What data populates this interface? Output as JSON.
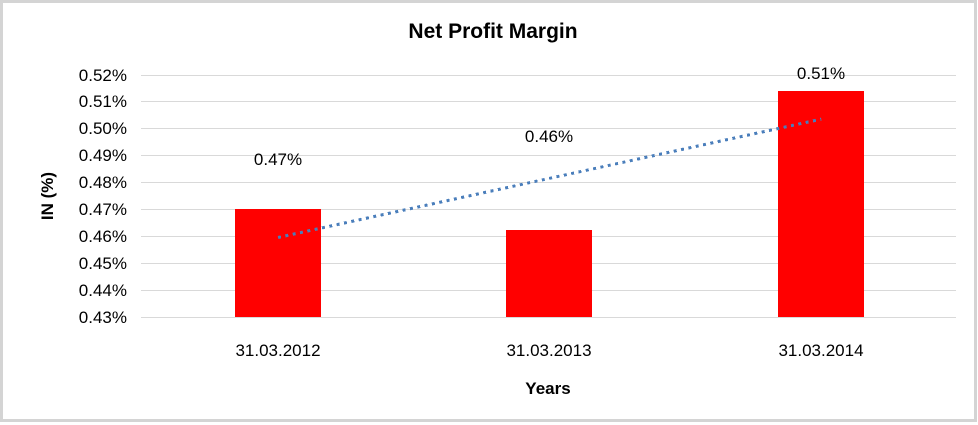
{
  "frame": {
    "border_color": "#d4d4d4",
    "background_color": "#ffffff"
  },
  "chart_data": {
    "type": "bar",
    "title": "Net Profit Margin",
    "xlabel": "Years",
    "ylabel": "IN (%)",
    "categories": [
      "31.03.2012",
      "31.03.2013",
      "31.03.2014"
    ],
    "values": [
      0.47,
      0.4625,
      0.514
    ],
    "data_labels": [
      "0.47%",
      "0.46%",
      "0.51%"
    ],
    "y_ticks": [
      "0.52%",
      "0.51%",
      "0.50%",
      "0.49%",
      "0.48%",
      "0.47%",
      "0.46%",
      "0.45%",
      "0.44%",
      "0.43%"
    ],
    "y_tick_values": [
      0.52,
      0.51,
      0.5,
      0.49,
      0.48,
      0.47,
      0.46,
      0.45,
      0.44,
      0.43
    ],
    "ylim": [
      0.43,
      0.52
    ],
    "grid": true,
    "legend_position": "none",
    "bar_color": "#ff0000",
    "gridline_color": "#d9d9d9",
    "text_color": "#000000",
    "trendline": {
      "type": "linear",
      "style": "dotted",
      "color": "#4a7ebb",
      "start_value": 0.4595,
      "end_value": 0.5035
    }
  }
}
